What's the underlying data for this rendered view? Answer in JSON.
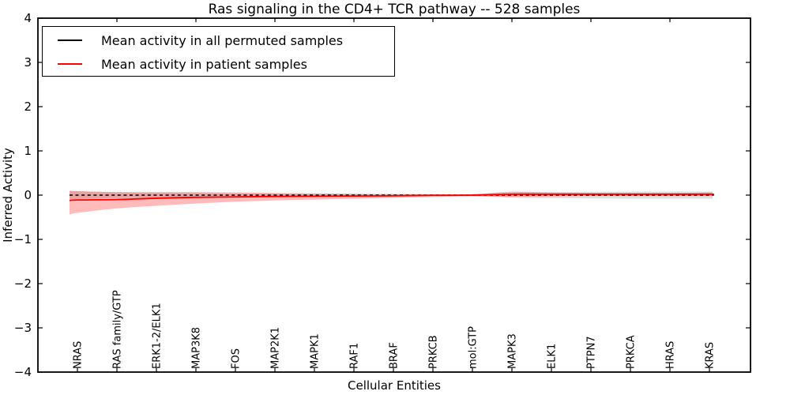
{
  "chart_data": {
    "type": "line",
    "title": "Ras signaling in the CD4+ TCR pathway -- 528 samples",
    "xlabel": "Cellular Entities",
    "ylabel": "Inferred Activity",
    "ylim": [
      -4,
      4
    ],
    "ytick_values": [
      4,
      3,
      2,
      1,
      0,
      -1,
      -2,
      -3,
      -4
    ],
    "ytick_labels": [
      "4",
      "3",
      "2",
      "1",
      "0",
      "−1",
      "−2",
      "−3",
      "−4"
    ],
    "grid": false,
    "legend_position": "upper-left",
    "categories": [
      "NRAS",
      "RAS family/GTP",
      "ERK1-2/ELK1",
      "MAP3K8",
      "FOS",
      "MAP2K1",
      "MAPK1",
      "RAF1",
      "BRAF",
      "PRKCB",
      "mol:GTP",
      "MAPK3",
      "ELK1",
      "PTPN7",
      "PRKCA",
      "HRAS",
      "KRAS"
    ],
    "series": [
      {
        "name": "Mean activity in all permuted samples",
        "color": "#000000",
        "line_style": "dashed",
        "band_color": "#000000",
        "band_opacity": 0.13,
        "values": [
          0,
          0,
          0,
          0,
          0,
          0,
          0,
          0,
          0,
          0,
          0,
          0,
          0,
          0,
          0,
          0,
          0
        ],
        "band_halfwidth": [
          0.09,
          0.065,
          0.055,
          0.05,
          0.04,
          0.035,
          0.03,
          0.03,
          0.025,
          0.02,
          0.02,
          0.06,
          0.07,
          0.075,
          0.08,
          0.08,
          0.08
        ],
        "edge": {
          "value": 0,
          "band_halfwidth": 0.09
        }
      },
      {
        "name": "Mean activity in patient samples",
        "color": "#ff0000",
        "line_style": "solid",
        "band_color": "#ff0000",
        "band_opacity": 0.27,
        "values": [
          -0.11,
          -0.1,
          -0.07,
          -0.05,
          -0.04,
          -0.03,
          -0.025,
          -0.02,
          -0.015,
          -0.005,
          0.0,
          0.02,
          0.02,
          0.02,
          0.02,
          0.02,
          0.02
        ],
        "band_upper": [
          0.09,
          0.07,
          0.07,
          0.07,
          0.06,
          0.05,
          0.04,
          0.03,
          0.025,
          0.02,
          0.02,
          0.08,
          0.06,
          0.05,
          0.05,
          0.05,
          0.06
        ],
        "band_lower": [
          -0.4,
          -0.3,
          -0.24,
          -0.19,
          -0.15,
          -0.12,
          -0.1,
          -0.08,
          -0.06,
          -0.04,
          -0.03,
          -0.04,
          -0.03,
          -0.02,
          -0.02,
          -0.02,
          -0.02
        ],
        "edge": {
          "value": -0.12,
          "band_upper": 0.1,
          "band_lower": -0.44
        }
      }
    ]
  },
  "legend": {
    "entries": [
      {
        "label": "Mean activity in all permuted samples",
        "color": "#000000"
      },
      {
        "label": "Mean activity in patient samples",
        "color": "#ff0000"
      }
    ]
  }
}
